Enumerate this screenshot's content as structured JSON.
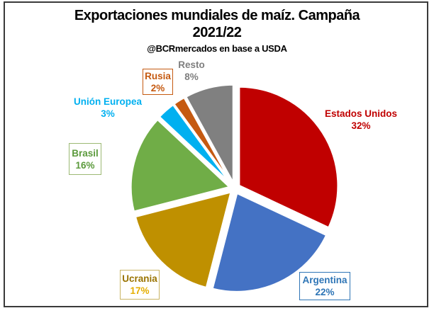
{
  "title": {
    "line1": "Exportaciones mundiales de maíz. Campaña",
    "line2": "2021/22",
    "subtitle": "@BCRmercados en base a USDA"
  },
  "chart_data": {
    "type": "pie",
    "title": "Exportaciones mundiales de maíz. Campaña 2021/22",
    "subtitle": "@BCRmercados en base a USDA",
    "unit": "%",
    "start_angle_deg": 0,
    "direction": "clockwise",
    "legend_position": "callouts-around-pie",
    "slices": [
      {
        "label": "Estados Unidos",
        "value": 32,
        "pct_label": "32%",
        "color": "#C00000",
        "text_color": "#C00000",
        "boxed": false
      },
      {
        "label": "Argentina",
        "value": 22,
        "pct_label": "22%",
        "color": "#4472C4",
        "text_color": "#2E75B6",
        "boxed": true,
        "box_border": "#2E75B6"
      },
      {
        "label": "Ucrania",
        "value": 17,
        "pct_label": "17%",
        "color": "#BF9000",
        "text_color": "#997300",
        "pct_color": "#E5AE00",
        "boxed": true,
        "box_border": "#C9B464"
      },
      {
        "label": "Brasil",
        "value": 16,
        "pct_label": "16%",
        "color": "#70AD47",
        "text_color": "#5B9A3C",
        "boxed": true,
        "box_border": "#9CB974"
      },
      {
        "label": "Unión Europea",
        "value": 3,
        "pct_label": "3%",
        "color": "#00B0F0",
        "text_color": "#00B0F0",
        "boxed": false
      },
      {
        "label": "Rusia",
        "value": 2,
        "pct_label": "2%",
        "color": "#C55A11",
        "text_color": "#C55A11",
        "boxed": true,
        "box_border": "#C55A11"
      },
      {
        "label": "Resto",
        "value": 8,
        "pct_label": "8%",
        "color": "#808080",
        "text_color": "#7F7F7F",
        "boxed": false
      }
    ]
  }
}
